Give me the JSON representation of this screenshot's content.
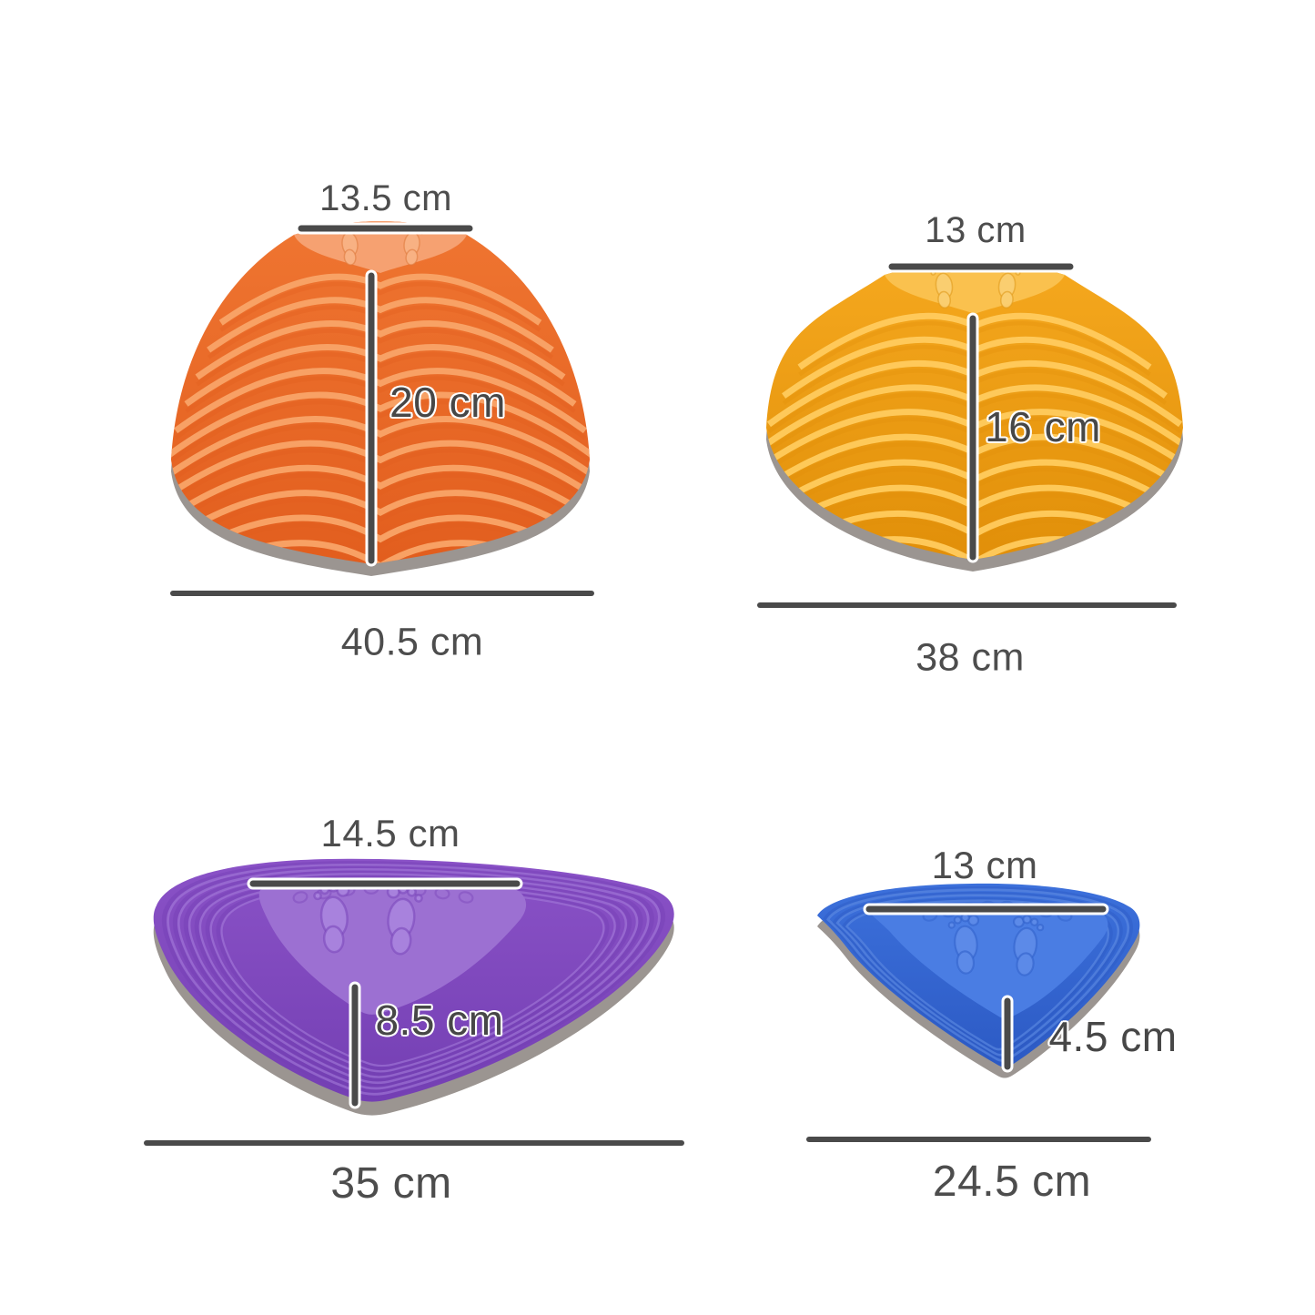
{
  "figure": {
    "description": "Size diagram of four balance stepping stones",
    "unit": "cm",
    "line_color": "#4A4A4A",
    "label_color": "#4D4D4D",
    "rim_color": "#9B9591",
    "background": "#FFFFFF",
    "stones": [
      {
        "id": "orange-stepping-stone",
        "top_width": "13.5 cm",
        "height": "20 cm",
        "base_width": "40.5 cm",
        "colors": {
          "base": "#EF7531",
          "light": "#F9A468",
          "dark": "#E25E1E",
          "plate": "#F6A171",
          "plate_light": "#F9B285",
          "foot": "#DE7A3C"
        }
      },
      {
        "id": "yellow-stepping-stone",
        "top_width": "13 cm",
        "height": "16 cm",
        "base_width": "38 cm",
        "colors": {
          "base": "#F5A81E",
          "light": "#FFCB5E",
          "dark": "#E18F09",
          "plate": "#FAC14E",
          "plate_light": "#FBCF72",
          "foot": "#E09A1A"
        }
      },
      {
        "id": "purple-stepping-stone",
        "top_width": "14.5 cm",
        "height": "8.5 cm",
        "base_width": "35 cm",
        "colors": {
          "base": "#8A52C7",
          "light": "#A77FDD",
          "dark": "#743FB3",
          "plate": "#9C70D2",
          "plate_light": "#A983DE",
          "foot": "#7C48BB"
        }
      },
      {
        "id": "blue-stepping-stone",
        "top_width": "13 cm",
        "height": "4.5 cm",
        "base_width": "24.5 cm",
        "colors": {
          "base": "#3C70DB",
          "light": "#6591E8",
          "dark": "#2C5AC4",
          "plate": "#4A7DE3",
          "plate_light": "#5D8BE9",
          "foot": "#3161C9"
        }
      }
    ]
  }
}
